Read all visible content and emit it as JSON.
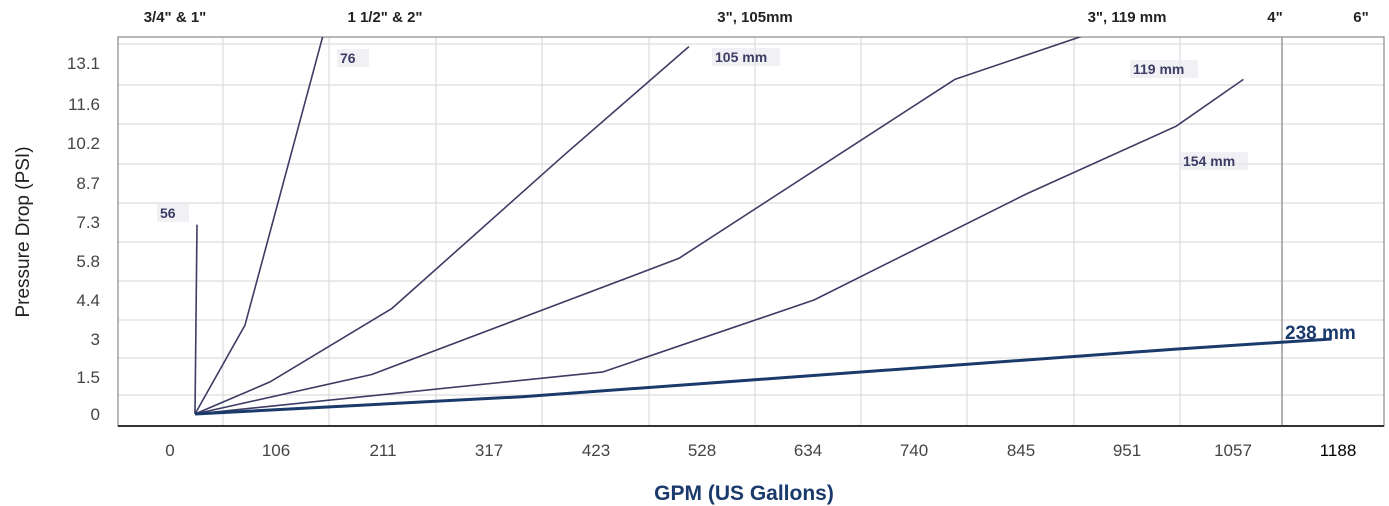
{
  "chart_data": {
    "type": "line",
    "xlabel": "GPM (US Gallons)",
    "ylabel": "Pressure Drop (PSI)",
    "x_ticks": [
      "0",
      "106",
      "211",
      "317",
      "423",
      "528",
      "634",
      "740",
      "845",
      "951",
      "1057",
      "1188"
    ],
    "y_ticks": [
      "0",
      "1.5",
      "3",
      "4.4",
      "5.8",
      "7.3",
      "8.7",
      "10.2",
      "11.6",
      "13.1"
    ],
    "top_labels": [
      "3/4\" & 1\"",
      "1 1/2\" & 2\"",
      "3\", 105mm",
      "3\", 119 mm",
      "4\"",
      "6\""
    ],
    "xlim": [
      0,
      1188
    ],
    "ylim": [
      0,
      14.5
    ],
    "grid": true,
    "series": [
      {
        "name": "56",
        "color": "#3c3c64",
        "x": [
          25,
          27
        ],
        "y": [
          0,
          7.2
        ]
      },
      {
        "name": "76",
        "color": "#3c3c64",
        "x": [
          25,
          75,
          155
        ],
        "y": [
          0,
          3.5,
          14.5
        ]
      },
      {
        "name": "105 mm",
        "color": "#3c3c64",
        "x": [
          25,
          100,
          220,
          390,
          515
        ],
        "y": [
          0,
          1.3,
          4.1,
          9.7,
          13.7
        ]
      },
      {
        "name": "119 mm",
        "color": "#3c3c64",
        "x": [
          25,
          200,
          505,
          780,
          940
        ],
        "y": [
          0,
          1.6,
          5.9,
          12.5,
          14.5
        ]
      },
      {
        "name": "154 mm",
        "color": "#3c3c64",
        "x": [
          25,
          430,
          640,
          850,
          1000,
          1070
        ],
        "y": [
          0,
          1.7,
          4.4,
          8.3,
          10.8,
          12.5
        ]
      },
      {
        "name": "238 mm",
        "color": "#1a3a6b",
        "x": [
          25,
          350,
          1000,
          1180
        ],
        "y": [
          0,
          0.7,
          2.6,
          3.0
        ]
      }
    ]
  }
}
